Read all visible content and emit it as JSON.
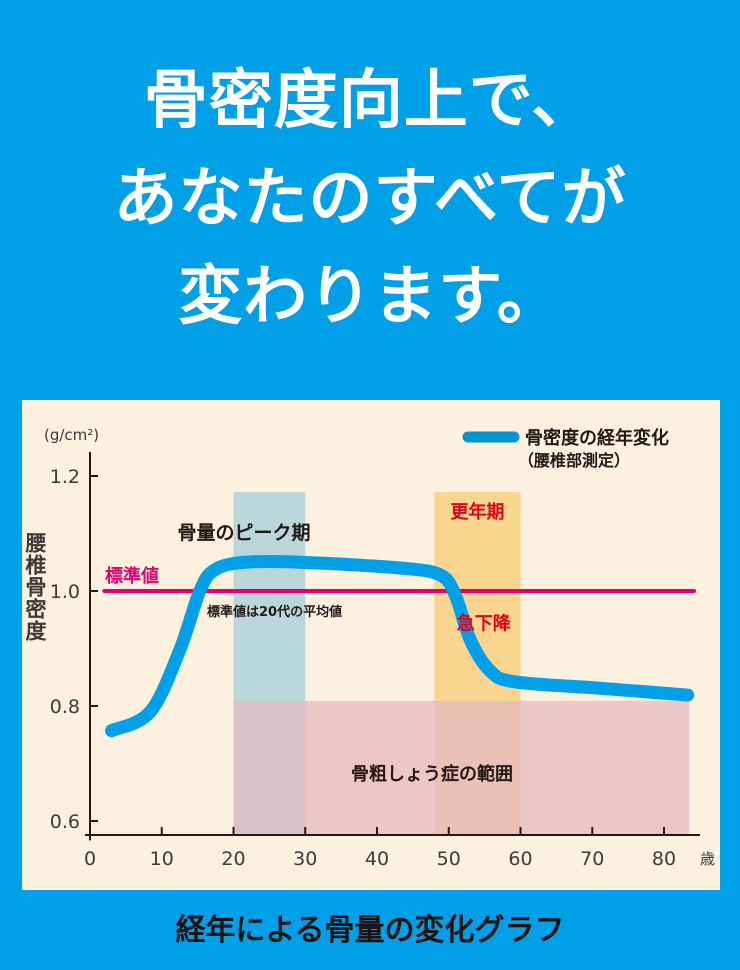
{
  "headline": {
    "lines": [
      "骨密度向上で、",
      "あなたのすべてが",
      "変わります。"
    ]
  },
  "caption": "経年による骨量の変化グラフ",
  "colors": {
    "background": "#00a0e9",
    "chart_bg": "#fcf0de",
    "curve": "#00a0e9",
    "standard_line": "#e4006f",
    "peak_band": "#b9d6da",
    "menopause_band": "#f9d590",
    "osteoporosis_band": "#e6bac3",
    "red_text": "#e60012"
  },
  "chart_data": {
    "type": "line",
    "xlabel": "歳",
    "ylabel": "腰椎骨密度",
    "yunit": "(g/cm²)",
    "xlim": [
      0,
      85
    ],
    "ylim": [
      0.575,
      1.25
    ],
    "xticks": [
      0,
      10,
      20,
      30,
      40,
      50,
      60,
      70,
      80
    ],
    "yticks": [
      0.6,
      0.8,
      1.0,
      1.2
    ],
    "ytick_labels": [
      "0.6",
      "0.8",
      "1.0",
      "1.2"
    ],
    "legend": {
      "position": "top-right",
      "label": "骨密度の経年変化",
      "sublabel": "（腰椎部測定）"
    },
    "series": [
      {
        "name": "骨密度の経年変化",
        "x": [
          3,
          8.4,
          12.5,
          15.3,
          17.4,
          21.6,
          29.3,
          43.2,
          48.8,
          50.9,
          53,
          55.7,
          59.2,
          71,
          83.3
        ],
        "y": [
          0.757,
          0.79,
          0.897,
          1.0,
          1.037,
          1.05,
          1.05,
          1.04,
          1.028,
          0.993,
          0.915,
          0.862,
          0.842,
          0.831,
          0.819
        ]
      }
    ],
    "reference_line": {
      "y": 1.0,
      "x": [
        2,
        88
      ],
      "label": "標準値",
      "note": "標準値は20代の平均値"
    },
    "bands": [
      {
        "label": "骨量のピーク期",
        "x": [
          20,
          30
        ],
        "y": [
          0.575,
          1.172
        ]
      },
      {
        "label": "更年期",
        "x": [
          48,
          60
        ],
        "y": [
          0.575,
          1.172
        ]
      },
      {
        "label": "骨粗しょう症の範囲",
        "x": [
          20,
          83.5
        ],
        "y": [
          0.575,
          0.809
        ]
      }
    ],
    "annotations": [
      {
        "text": "急下降",
        "x": 56,
        "y": 0.93
      }
    ]
  }
}
